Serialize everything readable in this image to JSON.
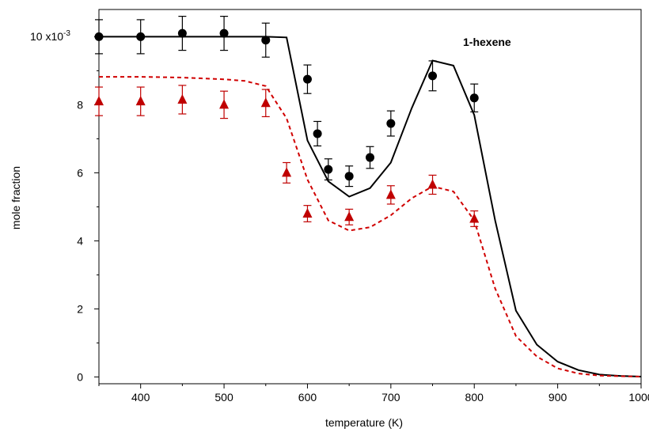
{
  "chart_data": {
    "type": "line",
    "xlabel": "temperature (K)",
    "ylabel": "mole fraction",
    "annotation": "1-hexene",
    "y_scale_label": {
      "base": "10 x10",
      "exponent": "-3"
    },
    "xlim": [
      350,
      1000
    ],
    "ylim": [
      -0.2,
      10.8
    ],
    "x_ticks": [
      400,
      500,
      600,
      700,
      800,
      900,
      1000
    ],
    "y_ticks": [
      0,
      2,
      4,
      6,
      8,
      10
    ],
    "y_tick_labels": [
      "0",
      "2",
      "4",
      "6",
      "8",
      ""
    ],
    "grid": false,
    "series": [
      {
        "kind": "scatter",
        "marker": "circle",
        "color": "#000000",
        "x": [
          350,
          400,
          450,
          500,
          550,
          600,
          612,
          625,
          650,
          675,
          700,
          750,
          800
        ],
        "y": [
          10.0,
          10.0,
          10.1,
          10.1,
          9.9,
          8.75,
          7.15,
          6.1,
          5.9,
          6.45,
          7.45,
          8.85,
          8.2
        ],
        "err": [
          0.5,
          0.5,
          0.5,
          0.5,
          0.5,
          0.42,
          0.36,
          0.31,
          0.3,
          0.32,
          0.37,
          0.44,
          0.41
        ]
      },
      {
        "kind": "scatter",
        "marker": "triangle",
        "color": "#c00000",
        "x": [
          350,
          400,
          450,
          500,
          550,
          575,
          600,
          650,
          700,
          750,
          800
        ],
        "y": [
          8.1,
          8.1,
          8.15,
          8.0,
          8.05,
          6.0,
          4.8,
          4.7,
          5.35,
          5.65,
          4.65
        ],
        "err": [
          0.42,
          0.42,
          0.42,
          0.4,
          0.4,
          0.3,
          0.24,
          0.23,
          0.27,
          0.28,
          0.23
        ]
      },
      {
        "kind": "line",
        "style": "solid",
        "color": "#000000",
        "x": [
          350,
          400,
          450,
          500,
          550,
          575,
          600,
          625,
          650,
          675,
          700,
          725,
          750,
          775,
          800,
          825,
          850,
          875,
          900,
          925,
          950,
          975,
          1000
        ],
        "y": [
          10.0,
          10.0,
          10.0,
          10.0,
          10.0,
          9.98,
          6.95,
          5.75,
          5.3,
          5.55,
          6.3,
          7.9,
          9.3,
          9.15,
          7.7,
          4.6,
          1.95,
          0.95,
          0.45,
          0.2,
          0.07,
          0.03,
          0.01
        ]
      },
      {
        "kind": "line",
        "style": "dashed",
        "color": "#d00000",
        "x": [
          350,
          400,
          450,
          500,
          525,
          550,
          575,
          600,
          625,
          650,
          675,
          700,
          725,
          750,
          775,
          800,
          825,
          850,
          875,
          900,
          925,
          950,
          975,
          1000
        ],
        "y": [
          8.82,
          8.82,
          8.8,
          8.75,
          8.7,
          8.55,
          7.6,
          5.8,
          4.6,
          4.3,
          4.4,
          4.75,
          5.25,
          5.6,
          5.45,
          4.6,
          2.6,
          1.2,
          0.6,
          0.25,
          0.1,
          0.04,
          0.02,
          0.01
        ]
      }
    ]
  }
}
